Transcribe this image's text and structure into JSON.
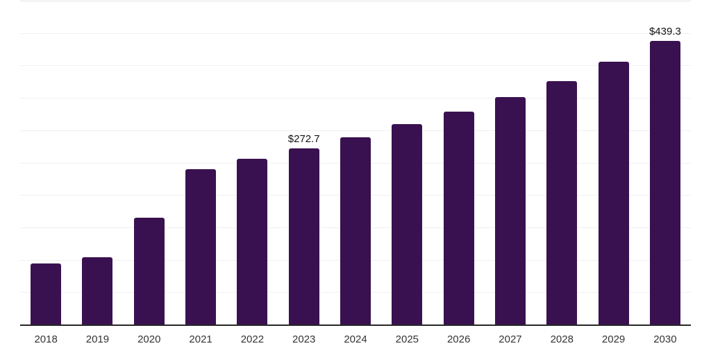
{
  "chart_data": {
    "type": "bar",
    "title": "",
    "xlabel": "",
    "ylabel": "",
    "categories": [
      "2018",
      "2019",
      "2020",
      "2021",
      "2022",
      "2023",
      "2024",
      "2025",
      "2026",
      "2027",
      "2028",
      "2029",
      "2030"
    ],
    "values": [
      95,
      105,
      166,
      241,
      257,
      272.7,
      290,
      310,
      330,
      352,
      377,
      407,
      439.3
    ],
    "bar_labels": [
      "",
      "",
      "",
      "",
      "",
      "$272.7",
      "",
      "",
      "",
      "",
      "",
      "",
      "$439.3"
    ],
    "ylim": [
      0,
      500
    ],
    "gridline_step": 50,
    "grid": "horizontal",
    "legend": "none",
    "y_tick_labels_visible": false,
    "colors": {
      "bar": "#3a1150",
      "background": "#ffffff",
      "gridline": "#f0f0f0",
      "top_gridline": "#e4e4e4",
      "axis_line": "#262626",
      "bar_label_text": "#111111",
      "tick_label_text": "#333333"
    }
  }
}
